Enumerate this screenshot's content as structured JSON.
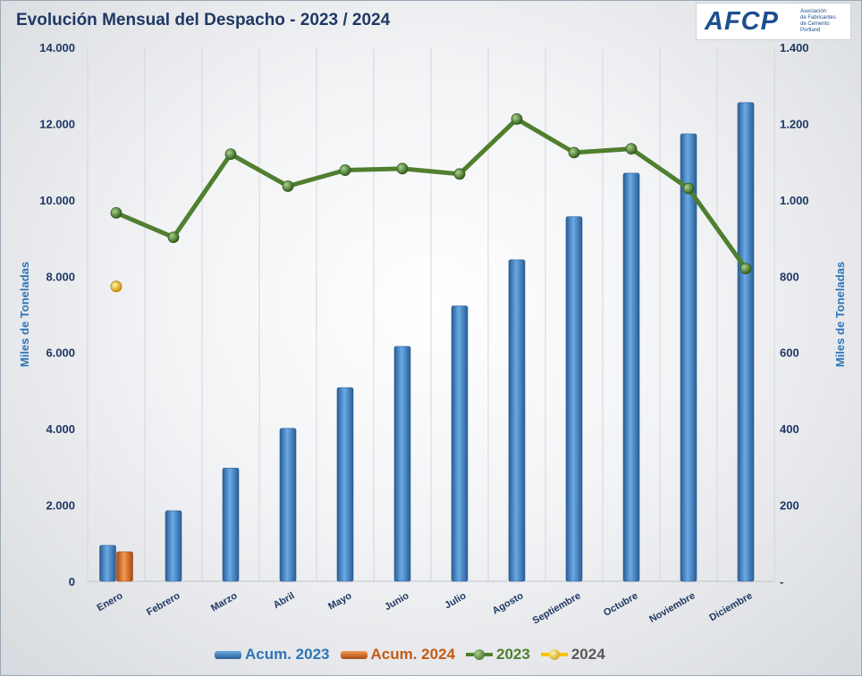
{
  "title": "Evolución Mensual del Despacho - 2023 / 2024",
  "logo": {
    "text": "AFCP",
    "subtitle_lines": [
      "Asociación",
      "de Fabricantes",
      "de Cemento",
      "Portland"
    ]
  },
  "chart_data": {
    "type": "bar",
    "categories": [
      "Enero",
      "Febrero",
      "Marzo",
      "Abril",
      "Mayo",
      "Junio",
      "Julio",
      "Agosto",
      "Septiembre",
      "Octubre",
      "Noviembre",
      "Diciembre"
    ],
    "series": [
      {
        "name": "Acum. 2023",
        "type": "bar",
        "axis": "left",
        "color": "#4a8fd0",
        "values": [
          945,
          1850,
          2970,
          4010,
          5080,
          6160,
          7220,
          8430,
          9560,
          10700,
          11730,
          12550
        ]
      },
      {
        "name": "Acum. 2024",
        "type": "bar",
        "axis": "left",
        "color": "#e0752d",
        "values": [
          775,
          null,
          null,
          null,
          null,
          null,
          null,
          null,
          null,
          null,
          null,
          null
        ]
      },
      {
        "name": "2023",
        "type": "line",
        "axis": "right",
        "color": "#4f7f2f",
        "values": [
          966,
          902,
          1120,
          1036,
          1078,
          1082,
          1068,
          1212,
          1124,
          1134,
          1030,
          820
        ]
      },
      {
        "name": "2024",
        "type": "line",
        "axis": "right",
        "color": "#ffc000",
        "values": [
          773,
          null,
          null,
          null,
          null,
          null,
          null,
          null,
          null,
          null,
          null,
          null
        ]
      }
    ],
    "y_left": {
      "label": "Miles de Toneladas",
      "range": [
        0,
        14000
      ],
      "ticks": [
        0,
        2000,
        4000,
        6000,
        8000,
        10000,
        12000,
        14000
      ],
      "tick_labels": [
        "0",
        "2.000",
        "4.000",
        "6.000",
        "8.000",
        "10.000",
        "12.000",
        "14.000"
      ]
    },
    "y_right": {
      "label": "Miles de Toneladas",
      "range": [
        0,
        1400
      ],
      "ticks": [
        0,
        200,
        400,
        600,
        800,
        1000,
        1200,
        1400
      ],
      "tick_labels": [
        "-",
        "200",
        "400",
        "600",
        "800",
        "1.000",
        "1.200",
        "1.400"
      ]
    },
    "grid": "vertical",
    "legend_position": "bottom"
  }
}
